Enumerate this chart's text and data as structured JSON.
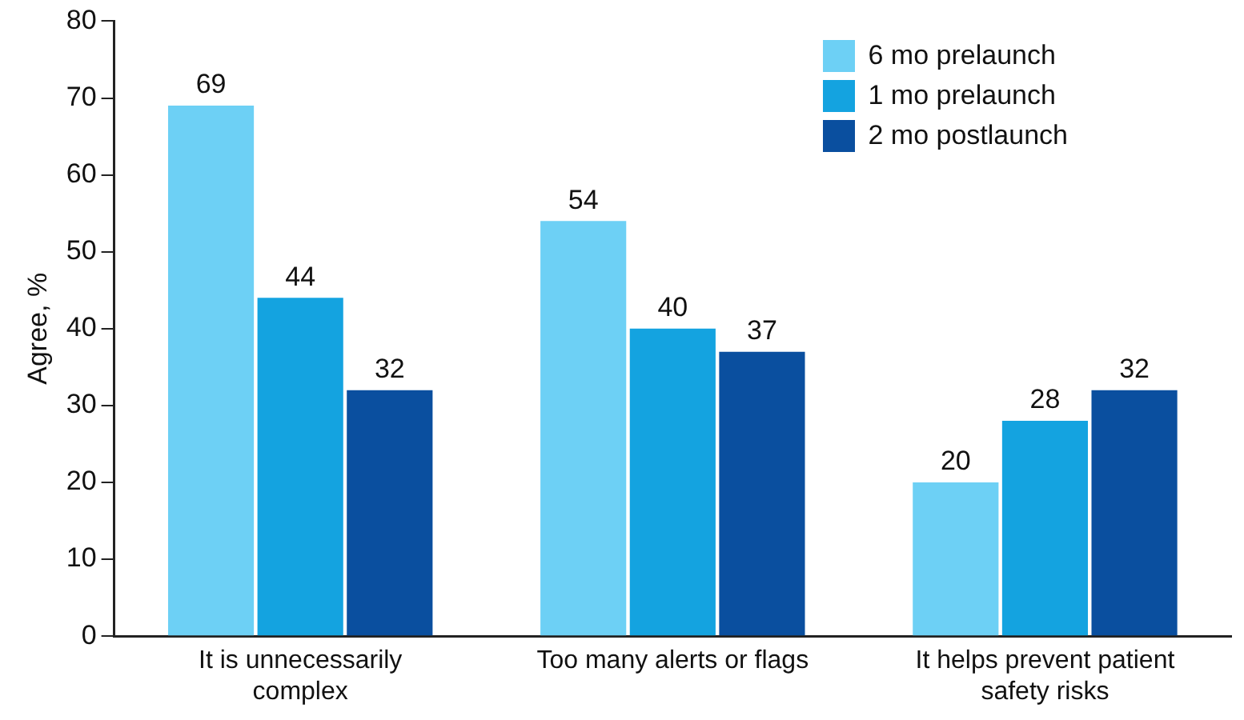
{
  "chart_data": {
    "type": "bar",
    "ylabel": "Agree, %",
    "categories": [
      "It is unnecessarily complex",
      "Too many alerts or flags",
      "It helps prevent patient safety risks"
    ],
    "series": [
      {
        "name": "6 mo prelaunch",
        "color": "#6dd0f5",
        "values": [
          69,
          54,
          20
        ]
      },
      {
        "name": "1 mo prelaunch",
        "color": "#14a3e0",
        "values": [
          44,
          40,
          28
        ]
      },
      {
        "name": "2 mo postlaunch",
        "color": "#0a4f9f",
        "values": [
          32,
          37,
          32
        ]
      }
    ],
    "ylim": [
      0,
      80
    ],
    "yticks": [
      0,
      10,
      20,
      30,
      40,
      50,
      60,
      70,
      80
    ],
    "grid": false,
    "legend": "top right",
    "data_labels": true
  }
}
